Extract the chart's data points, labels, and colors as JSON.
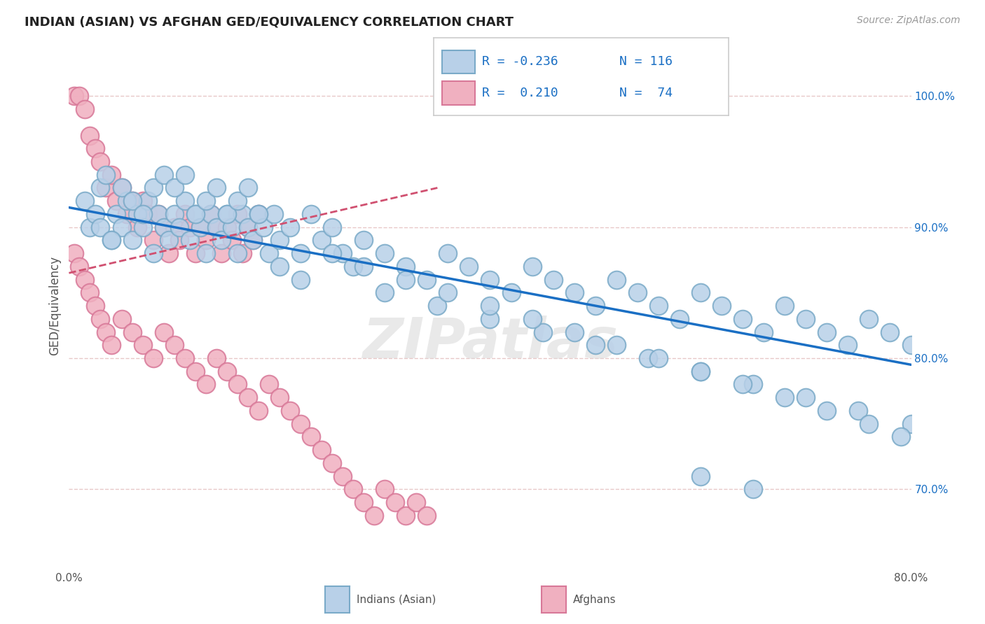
{
  "title": "INDIAN (ASIAN) VS AFGHAN GED/EQUIVALENCY CORRELATION CHART",
  "source": "Source: ZipAtlas.com",
  "ylabel": "GED/Equivalency",
  "xlim": [
    0.0,
    80.0
  ],
  "ylim": [
    64.0,
    104.0
  ],
  "yticks": [
    70.0,
    80.0,
    90.0,
    100.0
  ],
  "ytick_labels": [
    "70.0%",
    "80.0%",
    "90.0%",
    "100.0%"
  ],
  "blue_face": "#b8d0e8",
  "blue_edge": "#7aaac8",
  "pink_face": "#f0b0c0",
  "pink_edge": "#d87898",
  "trend_blue_color": "#1a6fc4",
  "trend_pink_color": "#d05070",
  "grid_color": "#e8c8c8",
  "watermark_color": "#d8d8d8",
  "watermark_text": "ZIPatlas",
  "title_color": "#222222",
  "source_color": "#999999",
  "legend_value_color": "#1a6fc4",
  "axis_label_color": "#555555",
  "bottom_legend_blue_label": "Indians (Asian)",
  "bottom_legend_pink_label": "Afghans",
  "indian_x": [
    1.5,
    2.0,
    2.5,
    3.0,
    3.5,
    4.0,
    4.5,
    5.0,
    5.5,
    6.0,
    6.5,
    7.0,
    7.5,
    8.0,
    8.5,
    9.0,
    9.5,
    10.0,
    10.5,
    11.0,
    11.5,
    12.0,
    12.5,
    13.0,
    13.5,
    14.0,
    14.5,
    15.0,
    15.5,
    16.0,
    16.5,
    17.0,
    17.5,
    18.0,
    18.5,
    19.0,
    19.5,
    20.0,
    21.0,
    22.0,
    23.0,
    24.0,
    25.0,
    26.0,
    27.0,
    28.0,
    30.0,
    32.0,
    34.0,
    36.0,
    38.0,
    40.0,
    42.0,
    44.0,
    46.0,
    48.0,
    50.0,
    52.0,
    54.0,
    56.0,
    58.0,
    60.0,
    62.0,
    64.0,
    66.0,
    68.0,
    70.0,
    72.0,
    74.0,
    76.0,
    78.0,
    80.0,
    8.0,
    9.0,
    10.0,
    11.0,
    12.0,
    13.0,
    14.0,
    15.0,
    16.0,
    17.0,
    18.0,
    5.0,
    6.0,
    7.0,
    3.0,
    4.0,
    20.0,
    22.0,
    30.0,
    35.0,
    40.0,
    45.0,
    50.0,
    55.0,
    60.0,
    65.0,
    70.0,
    75.0,
    80.0,
    25.0,
    28.0,
    32.0,
    36.0,
    40.0,
    44.0,
    48.0,
    52.0,
    56.0,
    60.0,
    64.0,
    68.0,
    72.0,
    76.0,
    79.0,
    60.0,
    65.0
  ],
  "indian_y": [
    92.0,
    90.0,
    91.0,
    93.0,
    94.0,
    89.0,
    91.0,
    90.0,
    92.0,
    89.0,
    91.0,
    90.0,
    92.0,
    88.0,
    91.0,
    90.0,
    89.0,
    91.0,
    90.0,
    92.0,
    89.0,
    91.0,
    90.0,
    88.0,
    91.0,
    90.0,
    89.0,
    91.0,
    90.0,
    88.0,
    91.0,
    90.0,
    89.0,
    91.0,
    90.0,
    88.0,
    91.0,
    89.0,
    90.0,
    88.0,
    91.0,
    89.0,
    90.0,
    88.0,
    87.0,
    89.0,
    88.0,
    87.0,
    86.0,
    88.0,
    87.0,
    86.0,
    85.0,
    87.0,
    86.0,
    85.0,
    84.0,
    86.0,
    85.0,
    84.0,
    83.0,
    85.0,
    84.0,
    83.0,
    82.0,
    84.0,
    83.0,
    82.0,
    81.0,
    83.0,
    82.0,
    81.0,
    93.0,
    94.0,
    93.0,
    94.0,
    91.0,
    92.0,
    93.0,
    91.0,
    92.0,
    93.0,
    91.0,
    93.0,
    92.0,
    91.0,
    90.0,
    89.0,
    87.0,
    86.0,
    85.0,
    84.0,
    83.0,
    82.0,
    81.0,
    80.0,
    79.0,
    78.0,
    77.0,
    76.0,
    75.0,
    88.0,
    87.0,
    86.0,
    85.0,
    84.0,
    83.0,
    82.0,
    81.0,
    80.0,
    79.0,
    78.0,
    77.0,
    76.0,
    75.0,
    74.0,
    71.0,
    70.0
  ],
  "afghan_x": [
    0.5,
    1.0,
    1.5,
    2.0,
    2.5,
    3.0,
    3.5,
    4.0,
    4.5,
    5.0,
    5.5,
    6.0,
    6.5,
    7.0,
    7.5,
    8.0,
    8.5,
    9.0,
    9.5,
    10.0,
    10.5,
    11.0,
    11.5,
    12.0,
    12.5,
    13.0,
    13.5,
    14.0,
    14.5,
    15.0,
    15.5,
    16.0,
    16.5,
    17.0,
    17.5,
    18.0,
    0.5,
    1.0,
    1.5,
    2.0,
    2.5,
    3.0,
    3.5,
    4.0,
    5.0,
    6.0,
    7.0,
    8.0,
    9.0,
    10.0,
    11.0,
    12.0,
    13.0,
    14.0,
    15.0,
    16.0,
    17.0,
    18.0,
    19.0,
    20.0,
    21.0,
    22.0,
    23.0,
    24.0,
    25.0,
    26.0,
    27.0,
    28.0,
    29.0,
    30.0,
    31.0,
    32.0,
    33.0,
    34.0
  ],
  "afghan_y": [
    100.0,
    100.0,
    99.0,
    97.0,
    96.0,
    95.0,
    93.0,
    94.0,
    92.0,
    93.0,
    91.0,
    92.0,
    90.0,
    92.0,
    91.0,
    89.0,
    91.0,
    90.0,
    88.0,
    90.0,
    89.0,
    91.0,
    90.0,
    88.0,
    90.0,
    89.0,
    91.0,
    90.0,
    88.0,
    90.0,
    89.0,
    91.0,
    88.0,
    90.0,
    89.0,
    91.0,
    88.0,
    87.0,
    86.0,
    85.0,
    84.0,
    83.0,
    82.0,
    81.0,
    83.0,
    82.0,
    81.0,
    80.0,
    82.0,
    81.0,
    80.0,
    79.0,
    78.0,
    80.0,
    79.0,
    78.0,
    77.0,
    76.0,
    78.0,
    77.0,
    76.0,
    75.0,
    74.0,
    73.0,
    72.0,
    71.0,
    70.0,
    69.0,
    68.0,
    70.0,
    69.0,
    68.0,
    69.0,
    68.0
  ]
}
